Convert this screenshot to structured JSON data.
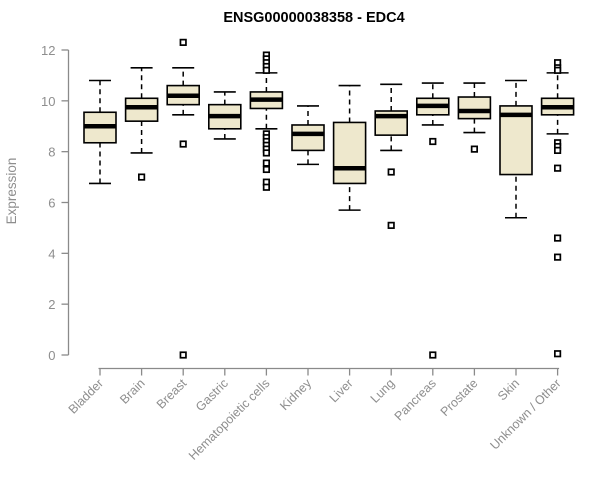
{
  "chart_data": {
    "type": "box",
    "title": "ENSG00000038358 - EDC4",
    "ylabel": "Expression",
    "xlabel": "",
    "ylim": [
      0,
      12
    ],
    "yticks": [
      0,
      2,
      4,
      6,
      8,
      10,
      12
    ],
    "grid": false,
    "legend": false,
    "categories": [
      "Bladder",
      "Brain",
      "Breast",
      "Gastric",
      "Hematopoietic cells",
      "Kidney",
      "Liver",
      "Lung",
      "Pancreas",
      "Prostate",
      "Skin",
      "Unknown / Other"
    ],
    "series": [
      {
        "name": "Bladder",
        "whisker_low": 6.75,
        "q1": 8.35,
        "median": 9.0,
        "q3": 9.55,
        "whisker_high": 10.8,
        "outliers": []
      },
      {
        "name": "Brain",
        "whisker_low": 7.95,
        "q1": 9.2,
        "median": 9.75,
        "q3": 10.1,
        "whisker_high": 11.3,
        "outliers": [
          7.0
        ]
      },
      {
        "name": "Breast",
        "whisker_low": 9.45,
        "q1": 9.85,
        "median": 10.2,
        "q3": 10.6,
        "whisker_high": 11.3,
        "outliers": [
          12.3,
          8.3,
          0.0
        ]
      },
      {
        "name": "Gastric",
        "whisker_low": 8.5,
        "q1": 8.9,
        "median": 9.4,
        "q3": 9.85,
        "whisker_high": 10.35,
        "outliers": []
      },
      {
        "name": "Hematopoietic cells",
        "whisker_low": 8.9,
        "q1": 9.7,
        "median": 10.05,
        "q3": 10.35,
        "whisker_high": 11.1,
        "outliers": [
          11.8,
          11.65,
          11.5,
          11.35,
          11.2,
          8.7,
          8.55,
          8.4,
          8.25,
          8.1,
          7.95,
          7.55,
          7.3,
          6.8,
          6.6
        ]
      },
      {
        "name": "Kidney",
        "whisker_low": 7.5,
        "q1": 8.05,
        "median": 8.7,
        "q3": 9.05,
        "whisker_high": 9.8,
        "outliers": []
      },
      {
        "name": "Liver",
        "whisker_low": 5.7,
        "q1": 6.75,
        "median": 7.35,
        "q3": 9.15,
        "whisker_high": 10.6,
        "outliers": []
      },
      {
        "name": "Lung",
        "whisker_low": 8.05,
        "q1": 8.65,
        "median": 9.4,
        "q3": 9.6,
        "whisker_high": 10.65,
        "outliers": [
          7.2,
          5.1
        ]
      },
      {
        "name": "Pancreas",
        "whisker_low": 9.05,
        "q1": 9.45,
        "median": 9.8,
        "q3": 10.1,
        "whisker_high": 10.7,
        "outliers": [
          8.4,
          0.0
        ]
      },
      {
        "name": "Prostate",
        "whisker_low": 8.75,
        "q1": 9.3,
        "median": 9.6,
        "q3": 10.15,
        "whisker_high": 10.7,
        "outliers": [
          8.1
        ]
      },
      {
        "name": "Skin",
        "whisker_low": 5.4,
        "q1": 7.1,
        "median": 9.45,
        "q3": 9.8,
        "whisker_high": 10.8,
        "outliers": []
      },
      {
        "name": "Unknown / Other",
        "whisker_low": 8.7,
        "q1": 9.45,
        "median": 9.75,
        "q3": 10.1,
        "whisker_high": 11.1,
        "outliers": [
          11.5,
          11.3,
          11.2,
          8.35,
          8.2,
          8.05,
          7.35,
          4.6,
          3.85,
          0.05
        ]
      }
    ],
    "style": {
      "box_fill": "#EEE8CD",
      "box_stroke": "#000000",
      "median_color": "#000000",
      "whisker_color": "#000000",
      "outlier_color": "#000000",
      "axis_color": "#8a8a8a",
      "tick_label_color": "#8e8e8e",
      "title_color": "#000000",
      "background": "#FFFFFF"
    }
  }
}
